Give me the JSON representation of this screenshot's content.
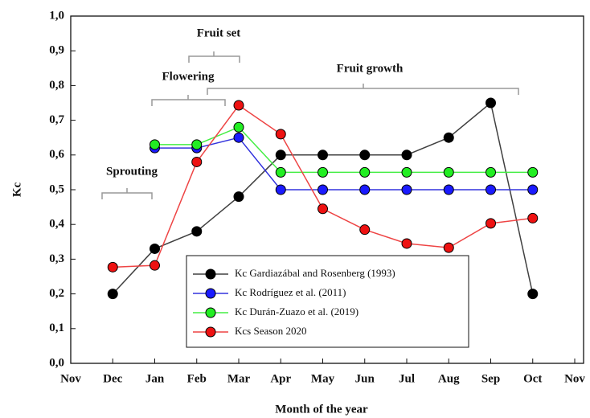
{
  "chart_data": {
    "type": "line",
    "xlabel": "Month of the year",
    "ylabel": "Kc",
    "categories": [
      "Nov",
      "Dec",
      "Jan",
      "Feb",
      "Mar",
      "Apr",
      "May",
      "Jun",
      "Jul",
      "Aug",
      "Sep",
      "Oct",
      "Nov"
    ],
    "series": [
      {
        "name": "Kc Gardiazábal and Rosenberg (1993)",
        "color": "#000000",
        "line_color": "#404040",
        "values": [
          null,
          0.2,
          0.33,
          0.38,
          0.48,
          0.6,
          0.6,
          0.6,
          0.6,
          0.65,
          0.75,
          0.2,
          null
        ]
      },
      {
        "name": "Kc Rodríguez et al. (2011)",
        "color": "#1a1aff",
        "line_color": "#3333dd",
        "values": [
          null,
          null,
          0.62,
          0.62,
          0.65,
          0.5,
          0.5,
          0.5,
          0.5,
          0.5,
          0.5,
          0.5,
          null
        ]
      },
      {
        "name": "Kc Durán-Zuazo et al. (2019)",
        "color": "#22ee22",
        "line_color": "#44ee44",
        "values": [
          null,
          null,
          0.63,
          0.63,
          0.68,
          0.55,
          0.55,
          0.55,
          0.55,
          0.55,
          0.55,
          0.55,
          null
        ]
      },
      {
        "name": "Kcs Season 2020",
        "color": "#ee1111",
        "line_color": "#ee4444",
        "values": [
          null,
          0.277,
          0.282,
          0.58,
          0.743,
          0.66,
          0.445,
          0.385,
          0.345,
          0.333,
          0.403,
          0.418,
          null
        ]
      }
    ],
    "ylim": [
      0,
      1
    ],
    "yticks": [
      {
        "value": 0,
        "label": "0,0"
      },
      {
        "value": 0.1,
        "label": "0,1"
      },
      {
        "value": 0.2,
        "label": "0,2"
      },
      {
        "value": 0.3,
        "label": "0,3"
      },
      {
        "value": 0.4,
        "label": "0,4"
      },
      {
        "value": 0.5,
        "label": "0,5"
      },
      {
        "value": 0.6,
        "label": "0,6"
      },
      {
        "value": 0.7,
        "label": "0,7"
      },
      {
        "value": 0.8,
        "label": "0,8"
      },
      {
        "value": 0.9,
        "label": "0,9"
      },
      {
        "value": 1,
        "label": "1,0"
      }
    ],
    "annotations": [
      "Sprouting",
      "Flowering",
      "Fruit set",
      "Fruit growth"
    ],
    "grid": false
  }
}
